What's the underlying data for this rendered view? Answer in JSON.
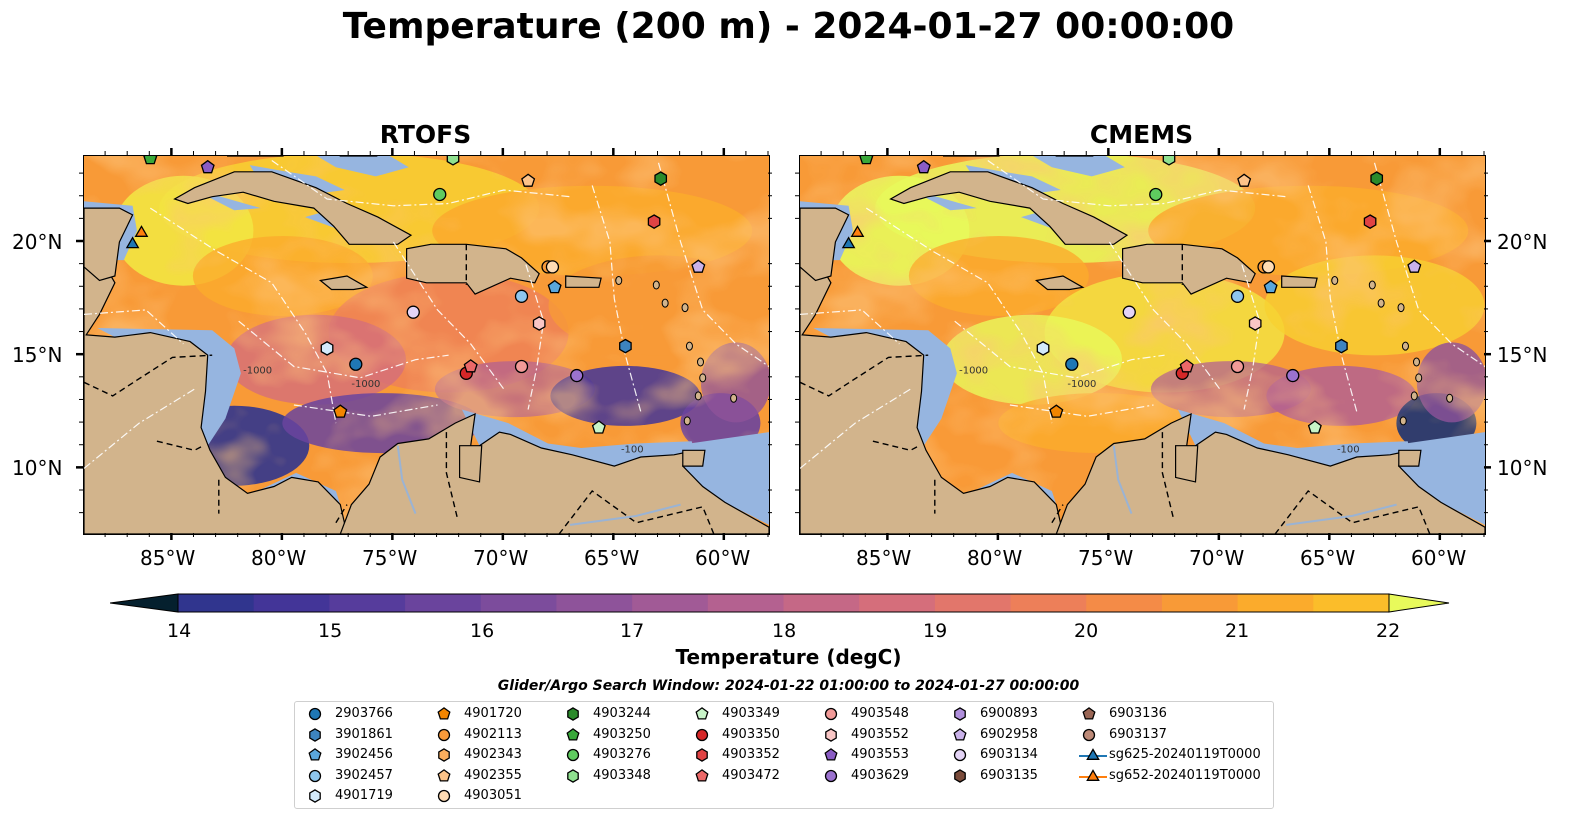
{
  "title": "Temperature (200 m) - 2024-01-27 00:00:00",
  "panels": [
    {
      "title": "RTOFS"
    },
    {
      "title": "CMEMS"
    }
  ],
  "axes": {
    "x_ticks": [
      "85°W",
      "80°W",
      "75°W",
      "70°W",
      "65°W",
      "60°W"
    ],
    "y_ticks": [
      "20°N",
      "15°N",
      "10°N"
    ]
  },
  "colorbar": {
    "label": "Temperature (degC)",
    "min": 14,
    "max": 22,
    "ticks": [
      "14",
      "15",
      "16",
      "17",
      "18",
      "19",
      "20",
      "21",
      "22"
    ],
    "extend": "both",
    "colormap": "thermal",
    "colors": [
      "#05202e",
      "#0b2a4b",
      "#1b3373",
      "#30358e",
      "#433598",
      "#563c9c",
      "#6a449d",
      "#7c4c9c",
      "#8e539a",
      "#a15a96",
      "#b46190",
      "#c56886",
      "#d56e7b",
      "#e2766b",
      "#ed7f59",
      "#f48b47",
      "#f89a37",
      "#fbab2c",
      "#fbbd2a",
      "#f8d131",
      "#f2e641",
      "#e8fa5b"
    ]
  },
  "map": {
    "land_color": "#d2b48c",
    "shelf_color": "#96b5e0",
    "isobath_labels": [
      "-1000",
      "-1000",
      "-100"
    ]
  },
  "search_window": "Glider/Argo Search Window: 2024-01-22 01:00:00 to 2024-01-27 00:00:00",
  "legend": {
    "columns": [
      [
        {
          "label": "2903766",
          "marker": "circle",
          "color": "#1f77b4"
        },
        {
          "label": "3901861",
          "marker": "hexagon",
          "color": "#3d84c0"
        },
        {
          "label": "3902456",
          "marker": "pentagon",
          "color": "#5aa7dd"
        },
        {
          "label": "3902457",
          "marker": "circle",
          "color": "#8ec6ee"
        },
        {
          "label": "4901719",
          "marker": "hexagon",
          "color": "#d3eafb"
        }
      ],
      [
        {
          "label": "4901720",
          "marker": "pentagon",
          "color": "#f28500"
        },
        {
          "label": "4902113",
          "marker": "circle",
          "color": "#f89a3a"
        },
        {
          "label": "4902343",
          "marker": "hexagon",
          "color": "#fbae5e"
        },
        {
          "label": "4902355",
          "marker": "pentagon",
          "color": "#fcc389"
        },
        {
          "label": "4903051",
          "marker": "circle",
          "color": "#ffdcb4"
        }
      ],
      [
        {
          "label": "4903244",
          "marker": "hexagon",
          "color": "#2b8a2b"
        },
        {
          "label": "4903250",
          "marker": "pentagon",
          "color": "#39a83a"
        },
        {
          "label": "4903276",
          "marker": "circle",
          "color": "#5fcb5f"
        },
        {
          "label": "4903348",
          "marker": "hexagon",
          "color": "#8fe08f"
        }
      ],
      [
        {
          "label": "4903349",
          "marker": "pentagon",
          "color": "#c8f4c8"
        },
        {
          "label": "4903350",
          "marker": "circle",
          "color": "#d62728"
        },
        {
          "label": "4903352",
          "marker": "hexagon",
          "color": "#e14344"
        },
        {
          "label": "4903472",
          "marker": "pentagon",
          "color": "#ec6868"
        }
      ],
      [
        {
          "label": "4903548",
          "marker": "circle",
          "color": "#f29a98"
        },
        {
          "label": "4903552",
          "marker": "hexagon",
          "color": "#f9c6c5"
        },
        {
          "label": "4903553",
          "marker": "pentagon",
          "color": "#8a5cc4"
        },
        {
          "label": "4903629",
          "marker": "circle",
          "color": "#9b72cf"
        }
      ],
      [
        {
          "label": "6900893",
          "marker": "hexagon",
          "color": "#b08fdc"
        },
        {
          "label": "6902958",
          "marker": "pentagon",
          "color": "#cab2ea"
        },
        {
          "label": "6903134",
          "marker": "circle",
          "color": "#e4d4f6"
        },
        {
          "label": "6903135",
          "marker": "hexagon",
          "color": "#7a4b3a"
        }
      ],
      [
        {
          "label": "6903136",
          "marker": "pentagon",
          "color": "#9a6655"
        },
        {
          "label": "6903137",
          "marker": "circle",
          "color": "#bd8a78"
        },
        {
          "label": "sg625-20240119T0000",
          "marker": "triangle-line",
          "color": "#1f77b4"
        },
        {
          "label": "sg652-20240119T0000",
          "marker": "triangle-line",
          "color": "#ff7f0e"
        }
      ]
    ]
  },
  "markers": [
    {
      "lon": -76.7,
      "lat": 14.6,
      "marker": "circle",
      "color": "#1f77b4"
    },
    {
      "lon": -64.5,
      "lat": 15.4,
      "marker": "hexagon",
      "color": "#3d84c0"
    },
    {
      "lon": -67.7,
      "lat": 18.0,
      "marker": "pentagon",
      "color": "#5aa7dd"
    },
    {
      "lon": -69.2,
      "lat": 17.6,
      "marker": "circle",
      "color": "#8ec6ee"
    },
    {
      "lon": -78.0,
      "lat": 15.3,
      "marker": "hexagon",
      "color": "#d3eafb"
    },
    {
      "lon": -77.4,
      "lat": 12.5,
      "marker": "pentagon",
      "color": "#f28500"
    },
    {
      "lon": -68.0,
      "lat": 18.9,
      "marker": "circle",
      "color": "#f89a3a"
    },
    {
      "lon": -68.9,
      "lat": 22.7,
      "marker": "pentagon",
      "color": "#fcc389"
    },
    {
      "lon": -67.8,
      "lat": 18.9,
      "marker": "circle",
      "color": "#ffdcb4"
    },
    {
      "lon": -62.9,
      "lat": 22.8,
      "marker": "hexagon",
      "color": "#2b8a2b"
    },
    {
      "lon": -86.0,
      "lat": 23.7,
      "marker": "pentagon",
      "color": "#39a83a"
    },
    {
      "lon": -72.9,
      "lat": 22.1,
      "marker": "circle",
      "color": "#5fcb5f"
    },
    {
      "lon": -72.3,
      "lat": 23.7,
      "marker": "hexagon",
      "color": "#8fe08f"
    },
    {
      "lon": -65.7,
      "lat": 11.8,
      "marker": "pentagon",
      "color": "#c8f4c8"
    },
    {
      "lon": -71.7,
      "lat": 14.2,
      "marker": "circle",
      "color": "#d62728"
    },
    {
      "lon": -63.2,
      "lat": 20.9,
      "marker": "hexagon",
      "color": "#e14344"
    },
    {
      "lon": -71.5,
      "lat": 14.5,
      "marker": "pentagon",
      "color": "#ec6868"
    },
    {
      "lon": -69.2,
      "lat": 14.5,
      "marker": "circle",
      "color": "#f29a98"
    },
    {
      "lon": -68.4,
      "lat": 16.4,
      "marker": "hexagon",
      "color": "#f9c6c5"
    },
    {
      "lon": -83.4,
      "lat": 23.3,
      "marker": "pentagon",
      "color": "#8a5cc4"
    },
    {
      "lon": -66.7,
      "lat": 14.1,
      "marker": "circle",
      "color": "#9b72cf"
    },
    {
      "lon": -61.2,
      "lat": 18.9,
      "marker": "pentagon",
      "color": "#cab2ea"
    },
    {
      "lon": -74.1,
      "lat": 16.9,
      "marker": "circle",
      "color": "#e4d4f6"
    },
    {
      "lon": -86.4,
      "lat": 20.4,
      "marker": "triangle",
      "color": "#ff7f0e"
    },
    {
      "lon": -86.8,
      "lat": 19.9,
      "marker": "triangle",
      "color": "#1f77b4"
    }
  ]
}
